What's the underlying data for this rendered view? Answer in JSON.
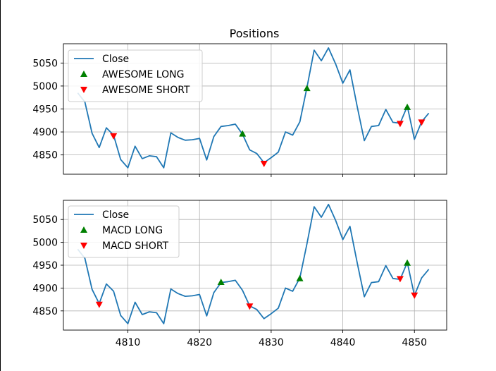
{
  "figure": {
    "title": "Positions"
  },
  "colors": {
    "close_line": "#1f77b4",
    "long_marker": "#008000",
    "short_marker": "#ff0000",
    "grid": "#b0b0b0"
  },
  "chart_data": [
    {
      "type": "line",
      "title": "Positions",
      "xlim": [
        4801,
        4854.5
      ],
      "ylim": [
        4808,
        5092
      ],
      "yticks": [
        4850,
        4900,
        4950,
        5000,
        5050
      ],
      "xticks": [
        4810,
        4820,
        4830,
        4840,
        4850
      ],
      "show_xtick_labels": false,
      "grid": true,
      "legend_position": "upper-left",
      "series": [
        {
          "name": "Close",
          "kind": "line",
          "x": [
            4803,
            4804,
            4805,
            4806,
            4807,
            4808,
            4809,
            4810,
            4811,
            4812,
            4813,
            4814,
            4815,
            4816,
            4817,
            4818,
            4819,
            4820,
            4821,
            4822,
            4823,
            4824,
            4825,
            4826,
            4827,
            4828,
            4829,
            4830,
            4831,
            4832,
            4833,
            4834,
            4835,
            4836,
            4837,
            4838,
            4839,
            4840,
            4841,
            4842,
            4843,
            4844,
            4845,
            4846,
            4847,
            4848,
            4849,
            4850,
            4851,
            4852
          ],
          "y": [
            4985,
            4965,
            4897,
            4866,
            4909,
            4893,
            4840,
            4822,
            4869,
            4842,
            4848,
            4846,
            4822,
            4898,
            4888,
            4882,
            4883,
            4886,
            4839,
            4890,
            4912,
            4914,
            4917,
            4895,
            4861,
            4853,
            4833,
            4844,
            4856,
            4900,
            4893,
            4922,
            4997,
            5078,
            5055,
            5083,
            5048,
            5006,
            5035,
            4956,
            4881,
            4912,
            4914,
            4949,
            4921,
            4919,
            4956,
            4884,
            4922,
            4941
          ]
        },
        {
          "name": "AWESOME LONG",
          "kind": "marker-up",
          "x": [
            4826,
            4835,
            4849
          ],
          "y": [
            4896,
            4995,
            4954
          ]
        },
        {
          "name": "AWESOME SHORT",
          "kind": "marker-down",
          "x": [
            4808,
            4829,
            4848,
            4851
          ],
          "y": [
            4891,
            4831,
            4918,
            4921
          ]
        }
      ]
    },
    {
      "type": "line",
      "title": "",
      "xlim": [
        4801,
        4854.5
      ],
      "ylim": [
        4808,
        5092
      ],
      "yticks": [
        4850,
        4900,
        4950,
        5000,
        5050
      ],
      "xticks": [
        4810,
        4820,
        4830,
        4840,
        4850
      ],
      "show_xtick_labels": true,
      "grid": true,
      "legend_position": "upper-left",
      "series": [
        {
          "name": "Close",
          "kind": "line",
          "x": [
            4803,
            4804,
            4805,
            4806,
            4807,
            4808,
            4809,
            4810,
            4811,
            4812,
            4813,
            4814,
            4815,
            4816,
            4817,
            4818,
            4819,
            4820,
            4821,
            4822,
            4823,
            4824,
            4825,
            4826,
            4827,
            4828,
            4829,
            4830,
            4831,
            4832,
            4833,
            4834,
            4835,
            4836,
            4837,
            4838,
            4839,
            4840,
            4841,
            4842,
            4843,
            4844,
            4845,
            4846,
            4847,
            4848,
            4849,
            4850,
            4851,
            4852
          ],
          "y": [
            4985,
            4965,
            4897,
            4866,
            4909,
            4893,
            4840,
            4822,
            4869,
            4842,
            4848,
            4846,
            4822,
            4898,
            4888,
            4882,
            4883,
            4886,
            4839,
            4890,
            4912,
            4914,
            4917,
            4895,
            4861,
            4853,
            4833,
            4844,
            4856,
            4900,
            4893,
            4922,
            4997,
            5078,
            5055,
            5083,
            5048,
            5006,
            5035,
            4956,
            4881,
            4912,
            4914,
            4949,
            4921,
            4919,
            4956,
            4884,
            4922,
            4941
          ]
        },
        {
          "name": "MACD LONG",
          "kind": "marker-up",
          "x": [
            4823,
            4834,
            4849
          ],
          "y": [
            4913,
            4921,
            4955
          ]
        },
        {
          "name": "MACD SHORT",
          "kind": "marker-down",
          "x": [
            4806,
            4827,
            4848,
            4850
          ],
          "y": [
            4864,
            4860,
            4920,
            4884
          ]
        }
      ]
    }
  ]
}
